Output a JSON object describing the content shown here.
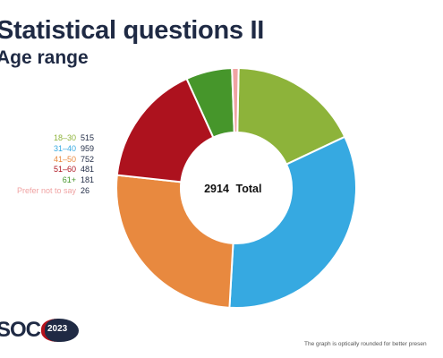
{
  "header": {
    "title": "Statistical questions II",
    "subtitle": "Age range"
  },
  "chart_data": {
    "type": "pie",
    "variant": "donut",
    "center_value": "2914",
    "center_label": "Total",
    "slices": [
      {
        "label": "18–30",
        "value": 515,
        "color": "#8db33a"
      },
      {
        "label": "31–40",
        "value": 959,
        "color": "#36a9e1"
      },
      {
        "label": "41–50",
        "value": 752,
        "color": "#e8893f"
      },
      {
        "label": "51–60",
        "value": 481,
        "color": "#ad121e"
      },
      {
        "label": "61+",
        "value": 181,
        "color": "#46962b"
      },
      {
        "label": "Prefer not to say",
        "value": 26,
        "color": "#f0a3a3"
      }
    ],
    "legend_position": "left"
  },
  "logo": {
    "text": "SOC",
    "year": "2023"
  },
  "footnote": "The graph is optically rounded for better presen"
}
